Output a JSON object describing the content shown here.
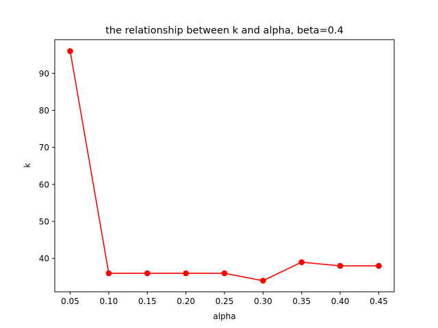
{
  "chart_data": {
    "type": "line",
    "title": "the relationship between k and alpha, beta=0.4",
    "xlabel": "alpha",
    "ylabel": "k",
    "x": [
      0.05,
      0.1,
      0.15,
      0.2,
      0.25,
      0.3,
      0.35,
      0.4,
      0.45
    ],
    "series": [
      {
        "values": [
          96,
          36,
          36,
          36,
          36,
          34,
          39,
          38,
          38
        ],
        "color": "#ff0000",
        "marker": "circle"
      }
    ],
    "xlim": [
      0.03,
      0.47
    ],
    "ylim": [
      31,
      99.1
    ],
    "xticks": [
      "0.05",
      "0.10",
      "0.15",
      "0.20",
      "0.25",
      "0.30",
      "0.35",
      "0.40",
      "0.45"
    ],
    "xtick_values": [
      0.05,
      0.1,
      0.15,
      0.2,
      0.25,
      0.3,
      0.35,
      0.4,
      0.45
    ],
    "yticks": [
      "40",
      "50",
      "60",
      "70",
      "80",
      "90"
    ],
    "ytick_values": [
      40,
      50,
      60,
      70,
      80,
      90
    ],
    "grid": false,
    "legend": false
  }
}
